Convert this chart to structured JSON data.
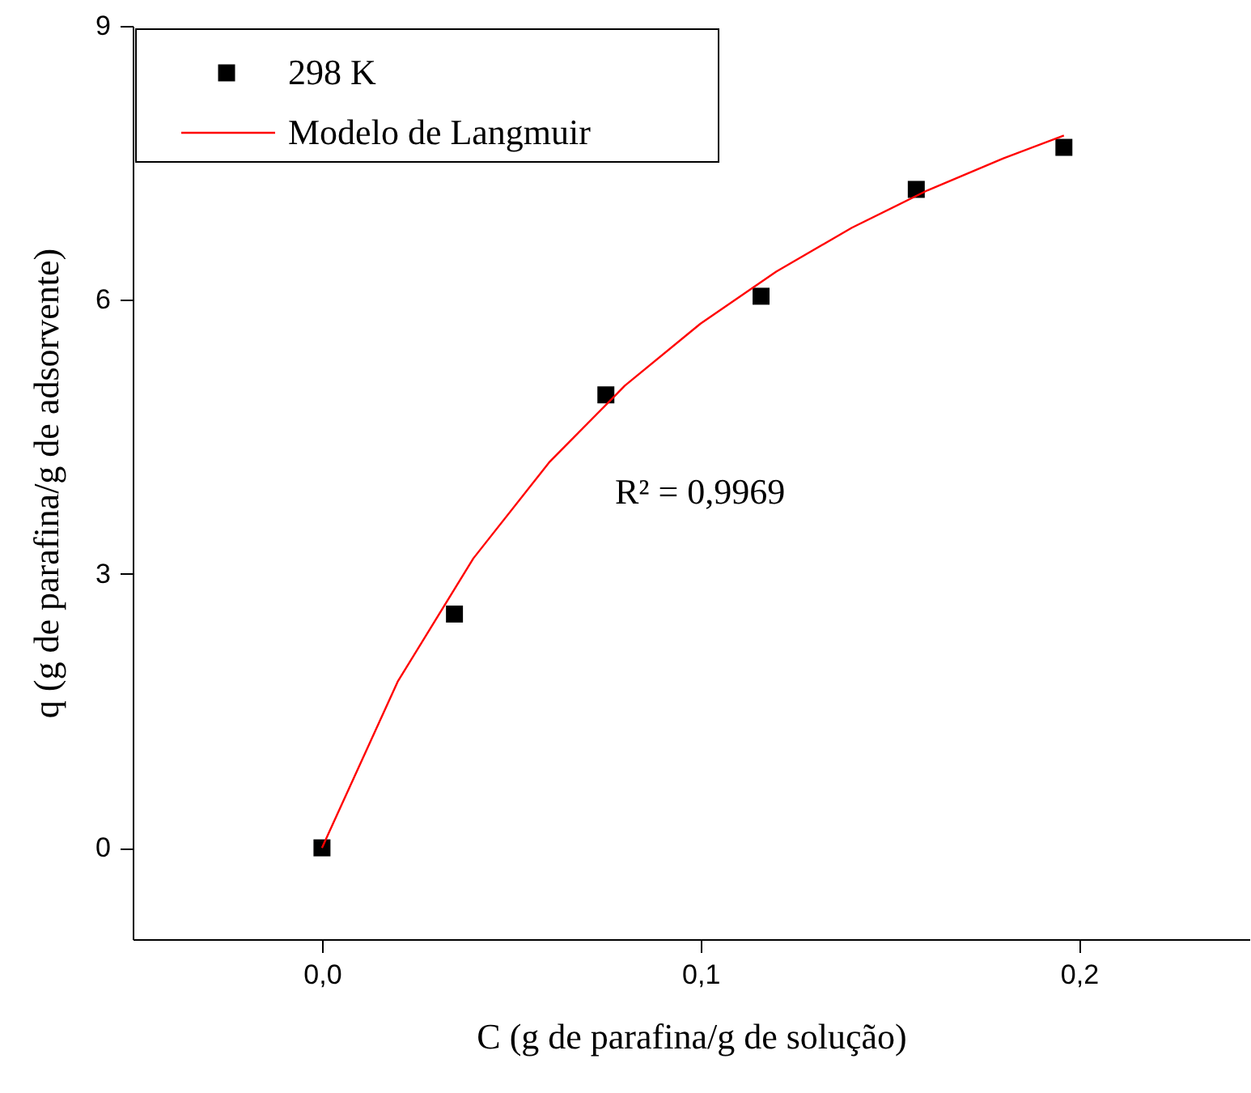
{
  "chart_data": {
    "type": "scatter",
    "xlabel": "C (g de parafina/g de solução)",
    "ylabel": "q (g de parafina/g de adsorvente)",
    "annotations": [
      "R² = 0,9969"
    ],
    "xlim": [
      -0.05,
      0.245
    ],
    "ylim": [
      -1,
      9
    ],
    "xticks": [
      {
        "value": 0,
        "label": "0,0"
      },
      {
        "value": 0.1,
        "label": "0,1"
      },
      {
        "value": 0.2,
        "label": "0,2"
      }
    ],
    "yticks": [
      0,
      3,
      6,
      9
    ],
    "grid": false,
    "legend": "top left",
    "line_style": "solid",
    "series": [
      {
        "name": "298 K",
        "marker": "square",
        "color": "#000000",
        "x": [
          0,
          0.035,
          0.075,
          0.116,
          0.157,
          0.196
        ],
        "values": [
          0,
          2.56,
          4.96,
          6.04,
          7.21,
          7.67
        ]
      },
      {
        "name": "Modelo de Langmuir",
        "type": "line",
        "marker": "none",
        "color": "#ff0000",
        "x": [
          0,
          0.02,
          0.04,
          0.06,
          0.08,
          0.1,
          0.12,
          0.14,
          0.16,
          0.18,
          0.196
        ],
        "values": [
          0,
          1.82,
          3.17,
          4.22,
          5.06,
          5.74,
          6.31,
          6.79,
          7.2,
          7.55,
          7.8
        ]
      }
    ]
  }
}
